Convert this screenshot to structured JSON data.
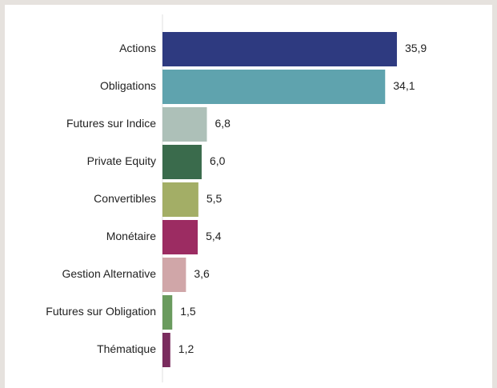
{
  "chart_data": {
    "type": "hbar",
    "categories": [
      "Actions",
      "Obligations",
      "Futures sur Indice",
      "Private Equity",
      "Convertibles",
      "Monétaire",
      "Gestion Alternative",
      "Futures sur Obligation",
      "Thématique"
    ],
    "values": [
      35.9,
      34.1,
      6.8,
      6.0,
      5.5,
      5.4,
      3.6,
      1.5,
      1.2
    ],
    "value_labels": [
      "35,9",
      "34,1",
      "6,8",
      "6,0",
      "5,5",
      "5,4",
      "3,6",
      "1,5",
      "1,2"
    ],
    "colors": [
      "#2e3a80",
      "#5fa3ae",
      "#adc0b8",
      "#3a6b4c",
      "#a3ae66",
      "#9c2c62",
      "#d0a6a8",
      "#6a9b5e",
      "#7a2c5e"
    ],
    "xlim": [
      0,
      40
    ]
  }
}
